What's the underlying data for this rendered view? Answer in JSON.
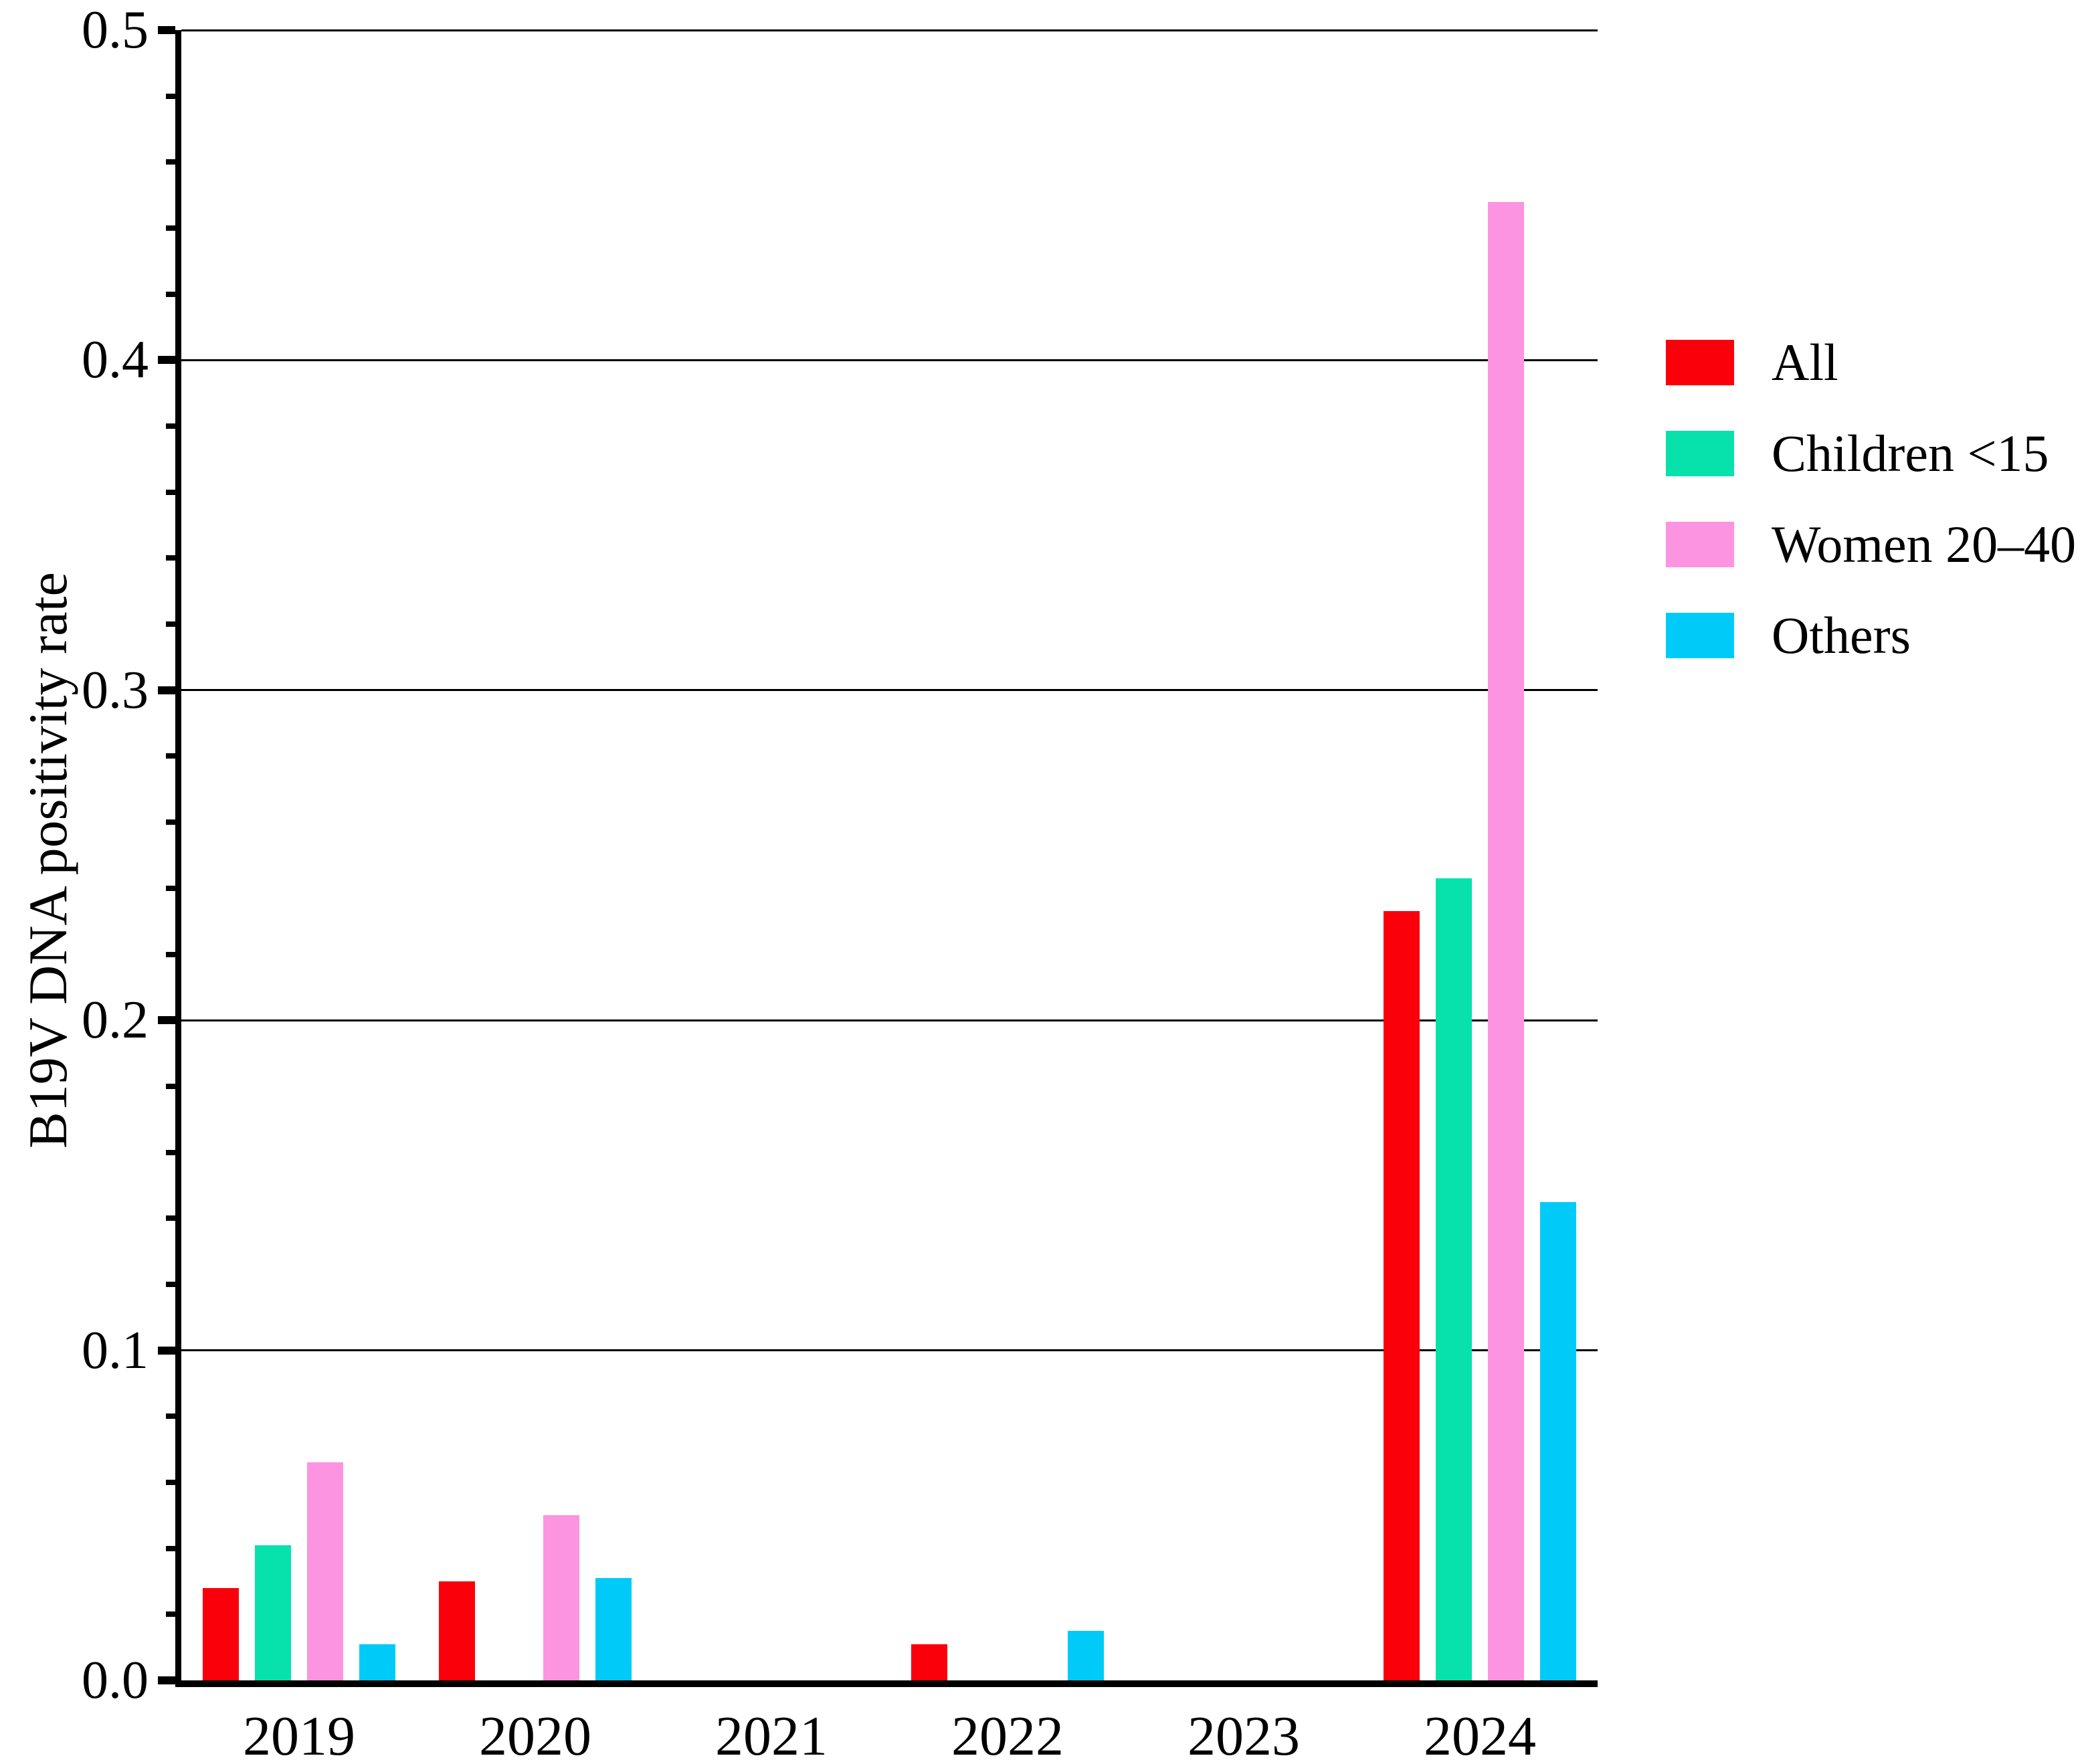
{
  "chart_data": {
    "type": "bar",
    "title": "",
    "xlabel": "",
    "ylabel": "B19V DNA positivity rate",
    "categories": [
      "2019",
      "2020",
      "2021",
      "2022",
      "2023",
      "2024"
    ],
    "series": [
      {
        "name": "All",
        "color": "#fa000a",
        "values": [
          0.028,
          0.03,
          0,
          0.011,
          0,
          0.233
        ]
      },
      {
        "name": "Children <15",
        "color": "#07e2ac",
        "values": [
          0.041,
          0,
          0,
          0,
          0,
          0.243
        ]
      },
      {
        "name": "Women 20–40",
        "color": "#fc94e2",
        "values": [
          0.066,
          0.05,
          0,
          0,
          0,
          0.448
        ]
      },
      {
        "name": "Others",
        "color": "#00cbf8",
        "values": [
          0.011,
          0.031,
          0,
          0.015,
          0,
          0.145
        ]
      }
    ],
    "ylim": [
      0,
      0.5
    ],
    "yticks": [
      {
        "label": "0.0",
        "value": 0.0
      },
      {
        "label": "0.1",
        "value": 0.1
      },
      {
        "label": "0.2",
        "value": 0.2
      },
      {
        "label": "0.3",
        "value": 0.3
      },
      {
        "label": "0.4",
        "value": 0.4
      },
      {
        "label": "0.5",
        "value": 0.5
      }
    ],
    "minor_tick_step": 0.02,
    "grid": "horizontal",
    "gridline_values": [
      0.1,
      0.2,
      0.3,
      0.4,
      0.5
    ],
    "legend_position": "upper-right",
    "axis_color": "#000000",
    "background_color": "#ffffff"
  }
}
